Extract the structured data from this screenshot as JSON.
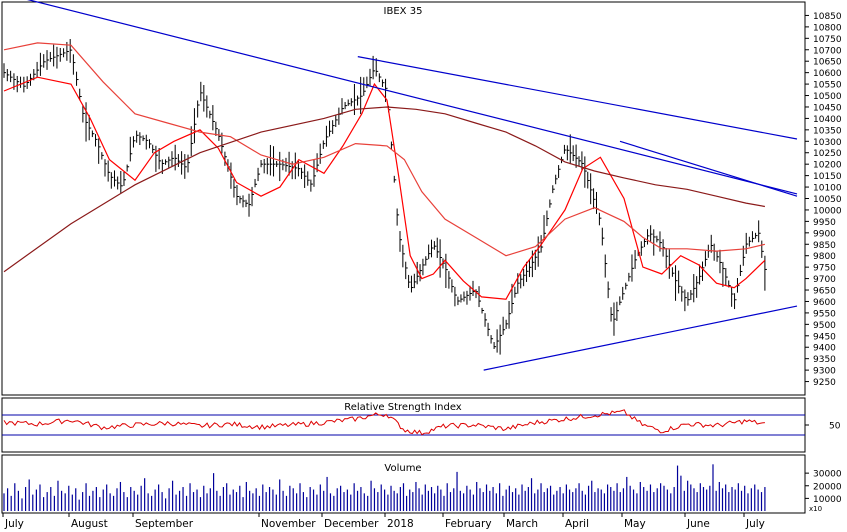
{
  "chart_data": [
    {
      "type": "ohlc",
      "title": "IBEX 35",
      "y_tick_labels": [
        "10850",
        "10800",
        "10750",
        "10700",
        "10650",
        "10600",
        "10550",
        "10500",
        "10450",
        "10400",
        "10350",
        "10300",
        "10250",
        "10200",
        "10150",
        "10100",
        "10050",
        "10000",
        "9950",
        "9900",
        "9850",
        "9800",
        "9750",
        "9700",
        "9650",
        "9600",
        "9550",
        "9500",
        "9450",
        "9400",
        "9350",
        "9300",
        "9250"
      ],
      "ylim": [
        9200,
        10900
      ],
      "x_tick_labels": [
        "July",
        "August",
        "September",
        "November",
        "December",
        "2018",
        "February",
        "March",
        "April",
        "May",
        "June",
        "July"
      ],
      "x_month_index": [
        0,
        1,
        2,
        4,
        5,
        6,
        7,
        8,
        9,
        10,
        11,
        12
      ],
      "close_series": {
        "t": [
          0.0,
          0.3,
          0.6,
          1.0,
          1.2,
          1.4,
          1.6,
          1.8,
          2.0,
          2.2,
          2.4,
          2.6,
          2.8,
          3.0,
          3.3,
          3.6,
          3.8,
          4.0,
          4.3,
          4.6,
          4.8,
          5.0,
          5.3,
          5.6,
          5.8,
          6.0,
          6.2,
          6.4,
          6.6,
          6.8,
          7.0,
          7.2,
          7.5,
          7.8,
          8.0,
          8.2,
          8.4,
          8.6,
          8.8,
          9.0,
          9.3,
          9.6,
          9.8,
          10.0,
          10.2,
          10.4,
          10.6,
          10.8,
          11.0,
          11.2,
          11.4,
          11.6,
          11.8,
          12.0,
          12.2,
          12.3
        ],
        "close": [
          10600,
          10540,
          10650,
          10700,
          10400,
          10300,
          10150,
          10100,
          10330,
          10300,
          10200,
          10230,
          10180,
          10520,
          10330,
          10060,
          10020,
          10200,
          10200,
          10180,
          10110,
          10300,
          10450,
          10500,
          10620,
          10520,
          9900,
          9650,
          9750,
          9850,
          9750,
          9600,
          9650,
          9400,
          9500,
          9680,
          9750,
          9840,
          10100,
          10270,
          10200,
          9950,
          9500,
          9650,
          9800,
          9900,
          9850,
          9700,
          9600,
          9700,
          9850,
          9750,
          9600,
          9850,
          9900,
          9740
        ]
      },
      "moving_averages": [
        {
          "t": [
            0.0,
            0.5,
            1.0,
            1.3,
            1.6,
            2.0,
            2.3,
            2.6,
            3.0,
            3.3,
            3.6,
            4.0,
            4.3,
            4.6,
            5.0,
            5.3,
            5.6,
            5.8,
            6.0,
            6.2,
            6.4,
            6.6,
            6.8,
            7.0,
            7.3,
            7.6,
            8.0,
            8.3,
            8.6,
            9.0,
            9.3,
            9.6,
            10.0,
            10.3,
            10.6,
            10.9,
            11.2,
            11.5,
            11.8,
            12.0,
            12.3
          ],
          "values": [
            10520,
            10580,
            10550,
            10400,
            10220,
            10130,
            10250,
            10300,
            10350,
            10270,
            10120,
            10060,
            10100,
            10220,
            10160,
            10280,
            10420,
            10550,
            10480,
            10150,
            9800,
            9700,
            9720,
            9780,
            9690,
            9620,
            9610,
            9750,
            9850,
            10000,
            10180,
            10230,
            10050,
            9750,
            9720,
            9800,
            9760,
            9680,
            9660,
            9700,
            9780
          ]
        },
        {
          "t": [
            0.0,
            0.5,
            1.0,
            1.5,
            2.0,
            2.5,
            3.0,
            3.5,
            4.0,
            4.5,
            5.0,
            5.5,
            6.0,
            6.3,
            6.6,
            7.0,
            7.5,
            8.0,
            8.5,
            9.0,
            9.5,
            10.0,
            10.3,
            10.6,
            11.0,
            11.5,
            12.0,
            12.3
          ],
          "values": [
            10700,
            10730,
            10720,
            10560,
            10420,
            10380,
            10340,
            10320,
            10240,
            10200,
            10230,
            10290,
            10280,
            10220,
            10080,
            9960,
            9880,
            9800,
            9840,
            9960,
            10010,
            9950,
            9880,
            9830,
            9830,
            9820,
            9830,
            9850
          ]
        },
        {
          "t": [
            0.0,
            1.0,
            2.0,
            3.0,
            4.0,
            5.0,
            5.5,
            6.0,
            6.5,
            7.0,
            7.5,
            8.0,
            8.5,
            9.0,
            9.5,
            10.0,
            10.5,
            11.0,
            11.5,
            12.0,
            12.3
          ],
          "values": [
            9730,
            9940,
            10110,
            10250,
            10340,
            10400,
            10440,
            10450,
            10440,
            10420,
            10380,
            10340,
            10280,
            10210,
            10170,
            10140,
            10110,
            10090,
            10060,
            10030,
            10015
          ]
        }
      ],
      "trendlines": [
        {
          "t": [
            0.0,
            14.0
          ],
          "values": [
            10950,
            10070
          ]
        },
        {
          "t": [
            5.6,
            13.0
          ],
          "values": [
            10670,
            10310
          ]
        },
        {
          "t": [
            10.0,
            13.0
          ],
          "values": [
            10300,
            10060
          ]
        },
        {
          "t": [
            7.7,
            13.0
          ],
          "values": [
            9300,
            9580
          ]
        }
      ]
    },
    {
      "type": "line",
      "title": "Relative Strength Index",
      "y_tick_labels": [
        "50"
      ],
      "ylim": [
        0,
        100
      ],
      "reference_lines": [
        30,
        70
      ],
      "t": [
        0.0,
        0.5,
        1.0,
        1.5,
        2.0,
        2.5,
        3.0,
        3.5,
        4.0,
        4.5,
        5.0,
        5.5,
        5.8,
        6.0,
        6.3,
        6.6,
        7.0,
        7.5,
        8.0,
        8.5,
        9.0,
        9.5,
        10.0,
        10.3,
        10.6,
        11.0,
        11.5,
        12.0,
        12.3
      ],
      "values": [
        55,
        52,
        60,
        45,
        50,
        54,
        48,
        52,
        46,
        50,
        55,
        62,
        70,
        72,
        40,
        34,
        48,
        50,
        42,
        55,
        62,
        70,
        76,
        50,
        38,
        52,
        49,
        58,
        52
      ]
    },
    {
      "type": "bar",
      "title": "Volume",
      "y_tick_labels": [
        "30000",
        "20000",
        "10000"
      ],
      "ylim": [
        0,
        42000
      ],
      "axis_note": "x10",
      "t_range": [
        0.0,
        12.3
      ],
      "values": [
        14000,
        18000,
        12000,
        22000,
        16000,
        10000,
        19000,
        25000,
        13000,
        17000,
        21000,
        11000,
        15000,
        19000,
        12000,
        24000,
        16000,
        14000,
        20000,
        13000,
        18000,
        9000,
        15000,
        22000,
        12000,
        16000,
        19000,
        11000,
        17000,
        21000,
        14000,
        12000,
        18000,
        23000,
        15000,
        11000,
        19000,
        16000,
        13000,
        20000,
        26000,
        14000,
        12000,
        17000,
        21000,
        15000,
        10000,
        18000,
        24000,
        13000,
        16000,
        19000,
        12000,
        22000,
        15000,
        17000,
        11000,
        20000,
        14000,
        18000,
        30000,
        16000,
        12000,
        19000,
        22000,
        13000,
        17000,
        15000,
        20000,
        11000,
        23000,
        16000,
        14000,
        18000,
        12000,
        21000,
        15000,
        19000,
        17000,
        13000,
        25000,
        16000,
        12000,
        20000,
        18000,
        14000,
        22000,
        15000,
        11000,
        19000,
        17000,
        13000,
        21000,
        16000,
        27000,
        14000,
        12000,
        18000,
        20000,
        15000,
        17000,
        13000,
        22000,
        16000,
        19000,
        14000,
        12000,
        24000,
        18000,
        15000,
        21000,
        17000,
        13000,
        20000,
        16000,
        14000,
        19000,
        22000,
        12000,
        17000,
        15000,
        23000,
        18000,
        13000,
        21000,
        16000,
        19000,
        14000,
        20000,
        17000,
        12000,
        22000,
        15000,
        18000,
        31000,
        16000,
        14000,
        20000,
        17000,
        13000,
        23000,
        18000,
        15000,
        21000,
        16000,
        19000,
        14000,
        22000,
        12000,
        17000,
        20000,
        15000,
        18000,
        13000,
        21000,
        16000,
        19000,
        26000,
        14000,
        17000,
        22000,
        15000,
        18000,
        20000,
        13000,
        16000,
        19000,
        14000,
        21000,
        17000,
        15000,
        18000,
        22000,
        16000,
        13000,
        20000,
        24000,
        15000,
        18000,
        17000,
        14000,
        21000,
        19000,
        16000,
        22000,
        15000,
        18000,
        27000,
        20000,
        17000,
        14000,
        23000,
        19000,
        16000,
        21000,
        15000,
        18000,
        22000,
        20000,
        17000,
        14000,
        19000,
        36000,
        28000,
        16000,
        24000,
        21000,
        18000,
        15000,
        22000,
        19000,
        17000,
        20000,
        37000,
        16000,
        23000,
        18000,
        21000,
        15000,
        19000,
        17000,
        22000,
        16000,
        20000,
        14000,
        18000,
        21000,
        17000,
        15000,
        19000
      ]
    }
  ],
  "colors": {
    "price_bars": "#000000",
    "ma_fast": "#ff0000",
    "ma_mid": "#e8413a",
    "ma_slow": "#8b1a1a",
    "trendline": "#0000cc",
    "rsi_line": "#dd0000",
    "rsi_bounds": "#0000aa",
    "volume_bars": "#00009a",
    "frame": "#000000"
  }
}
